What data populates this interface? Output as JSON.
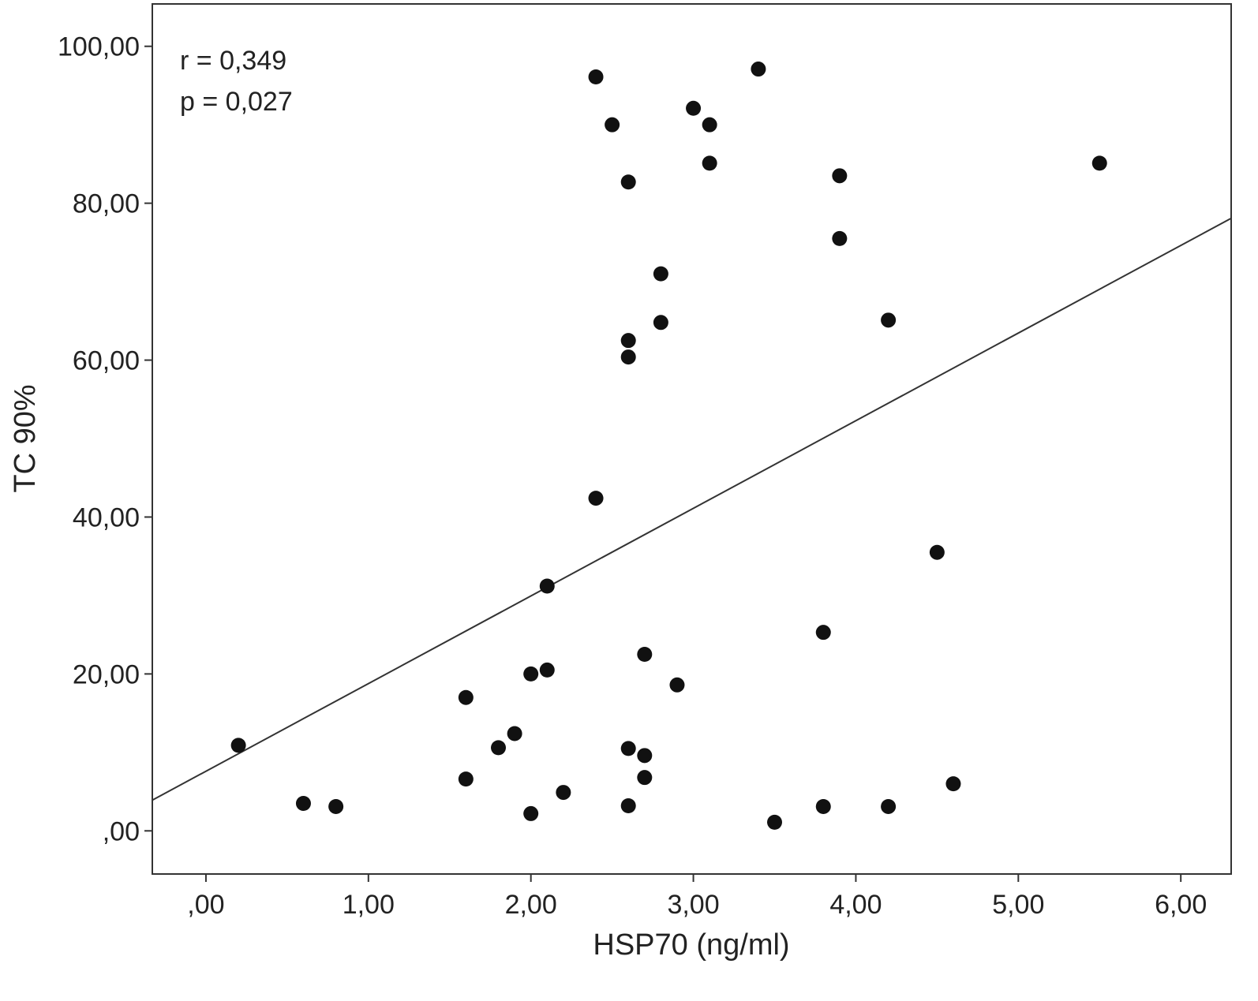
{
  "chart_data": {
    "type": "scatter",
    "xlabel": "HSP70 (ng/ml)",
    "ylabel": "TC 90%",
    "xlim": [
      -0.33,
      6.31
    ],
    "ylim": [
      -5.5,
      105.4
    ],
    "grid": false,
    "xticks": [
      0,
      1,
      2,
      3,
      4,
      5,
      6
    ],
    "xtick_labels": [
      ",00",
      "1,00",
      "2,00",
      "3,00",
      "4,00",
      "5,00",
      "6,00"
    ],
    "yticks": [
      0,
      20,
      40,
      60,
      80,
      100
    ],
    "ytick_labels": [
      ",00",
      "20,00",
      "40,00",
      "60,00",
      "80,00",
      "100,00"
    ],
    "annotations": [
      "r = 0,349",
      "p = 0,027"
    ],
    "points": [
      [
        0.2,
        10.9
      ],
      [
        0.6,
        3.5
      ],
      [
        0.8,
        3.1
      ],
      [
        1.6,
        17.0
      ],
      [
        1.6,
        6.6
      ],
      [
        1.8,
        10.6
      ],
      [
        1.9,
        12.4
      ],
      [
        2.0,
        20.0
      ],
      [
        2.0,
        2.2
      ],
      [
        2.1,
        20.5
      ],
      [
        2.1,
        31.2
      ],
      [
        2.2,
        4.9
      ],
      [
        2.4,
        42.4
      ],
      [
        2.4,
        96.1
      ],
      [
        2.5,
        90.0
      ],
      [
        2.6,
        82.7
      ],
      [
        2.6,
        62.5
      ],
      [
        2.6,
        60.4
      ],
      [
        2.6,
        10.5
      ],
      [
        2.6,
        3.2
      ],
      [
        2.7,
        22.5
      ],
      [
        2.7,
        9.6
      ],
      [
        2.7,
        6.8
      ],
      [
        2.8,
        71.0
      ],
      [
        2.8,
        64.8
      ],
      [
        2.9,
        18.6
      ],
      [
        3.0,
        92.1
      ],
      [
        3.1,
        90.0
      ],
      [
        3.1,
        85.1
      ],
      [
        3.4,
        97.1
      ],
      [
        3.5,
        1.1
      ],
      [
        3.8,
        25.3
      ],
      [
        3.8,
        3.1
      ],
      [
        3.9,
        83.5
      ],
      [
        3.9,
        75.5
      ],
      [
        4.2,
        65.1
      ],
      [
        4.2,
        3.1
      ],
      [
        4.5,
        35.5
      ],
      [
        4.6,
        6.0
      ],
      [
        5.5,
        85.1
      ]
    ],
    "fit_line": {
      "intercept": 7.6,
      "slope": 11.17
    },
    "colors": {
      "points": "#111111",
      "line": "#333333",
      "frame": "#333333"
    }
  }
}
